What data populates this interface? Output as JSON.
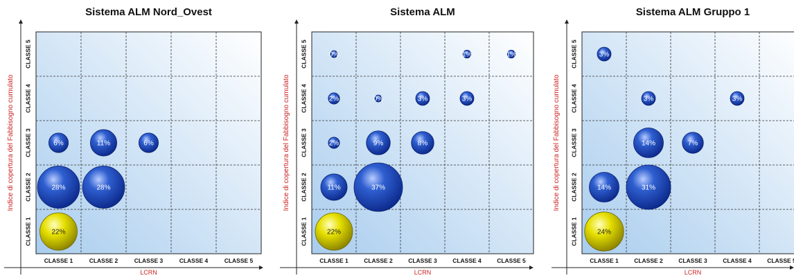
{
  "chart_data": [
    {
      "type": "bubble",
      "title": "Sistema ALM Nord_Ovest",
      "xlabel": "LCRN",
      "ylabel": "Indice di copertura del Fabbisogno cumulato",
      "x_categories": [
        "CLASSE 1",
        "CLASSE 2",
        "CLASSE 3",
        "CLASSE 4",
        "CLASSE 5"
      ],
      "y_categories": [
        "CLASSE 1",
        "CLASSE 2",
        "CLASSE 3",
        "CLASSE 4",
        "CLASSE 5"
      ],
      "grid": true,
      "points": [
        {
          "x": "CLASSE 1",
          "y": "CLASSE 1",
          "value": 22,
          "label": "22%",
          "color": "#e6e000"
        },
        {
          "x": "CLASSE 1",
          "y": "CLASSE 2",
          "value": 28,
          "label": "28%",
          "color": "#2f5fd0"
        },
        {
          "x": "CLASSE 2",
          "y": "CLASSE 2",
          "value": 28,
          "label": "28%",
          "color": "#2f5fd0"
        },
        {
          "x": "CLASSE 1",
          "y": "CLASSE 3",
          "value": 6,
          "label": "6%",
          "color": "#2f5fd0"
        },
        {
          "x": "CLASSE 2",
          "y": "CLASSE 3",
          "value": 11,
          "label": "11%",
          "color": "#2f5fd0"
        },
        {
          "x": "CLASSE 3",
          "y": "CLASSE 3",
          "value": 6,
          "label": "6%",
          "color": "#2f5fd0"
        }
      ]
    },
    {
      "type": "bubble",
      "title": "Sistema ALM",
      "xlabel": "LCRN",
      "ylabel": "Indice di copertura del Fabbisogno cumulato",
      "x_categories": [
        "CLASSE 1",
        "CLASSE 2",
        "CLASSE 3",
        "CLASSE 4",
        "CLASSE 5"
      ],
      "y_categories": [
        "CLASSE 1",
        "CLASSE 2",
        "CLASSE 3",
        "CLASSE 4",
        "CLASSE 5"
      ],
      "grid": true,
      "points": [
        {
          "x": "CLASSE 1",
          "y": "CLASSE 1",
          "value": 22,
          "label": "22%",
          "color": "#e6e000"
        },
        {
          "x": "CLASSE 1",
          "y": "CLASSE 2",
          "value": 11,
          "label": "11%",
          "color": "#2f5fd0"
        },
        {
          "x": "CLASSE 2",
          "y": "CLASSE 2",
          "value": 37,
          "label": "37%",
          "color": "#2f5fd0"
        },
        {
          "x": "CLASSE 1",
          "y": "CLASSE 3",
          "value": 2,
          "label": "2%",
          "color": "#2f5fd0"
        },
        {
          "x": "CLASSE 2",
          "y": "CLASSE 3",
          "value": 9,
          "label": "9%",
          "color": "#2f5fd0"
        },
        {
          "x": "CLASSE 3",
          "y": "CLASSE 3",
          "value": 8,
          "label": "8%",
          "color": "#2f5fd0"
        },
        {
          "x": "CLASSE 1",
          "y": "CLASSE 4",
          "value": 2,
          "label": "2%",
          "color": "#2f5fd0"
        },
        {
          "x": "CLASSE 2",
          "y": "CLASSE 4",
          "value": 0,
          "label": "0%",
          "color": "#2f5fd0"
        },
        {
          "x": "CLASSE 3",
          "y": "CLASSE 4",
          "value": 3,
          "label": "3%",
          "color": "#2f5fd0"
        },
        {
          "x": "CLASSE 4",
          "y": "CLASSE 4",
          "value": 3,
          "label": "3%",
          "color": "#2f5fd0"
        },
        {
          "x": "CLASSE 1",
          "y": "CLASSE 5",
          "value": 0,
          "label": "0%",
          "color": "#2f5fd0"
        },
        {
          "x": "CLASSE 4",
          "y": "CLASSE 5",
          "value": 1,
          "label": "1%",
          "color": "#2f5fd0"
        },
        {
          "x": "CLASSE 5",
          "y": "CLASSE 5",
          "value": 1,
          "label": "1%",
          "color": "#2f5fd0"
        }
      ]
    },
    {
      "type": "bubble",
      "title": "Sistema ALM Gruppo 1",
      "xlabel": "LCRN",
      "ylabel": "Indice di copertura del Fabbisogno cumulato",
      "x_categories": [
        "CLASSE 1",
        "CLASSE 2",
        "CLASSE 3",
        "CLASSE 4",
        "CLASSE 5"
      ],
      "y_categories": [
        "CLASSE 1",
        "CLASSE 2",
        "CLASSE 3",
        "CLASSE 4",
        "CLASSE 5"
      ],
      "grid": true,
      "points": [
        {
          "x": "CLASSE 1",
          "y": "CLASSE 1",
          "value": 24,
          "label": "24%",
          "color": "#e6e000"
        },
        {
          "x": "CLASSE 1",
          "y": "CLASSE 2",
          "value": 14,
          "label": "14%",
          "color": "#2f5fd0"
        },
        {
          "x": "CLASSE 2",
          "y": "CLASSE 2",
          "value": 31,
          "label": "31%",
          "color": "#2f5fd0"
        },
        {
          "x": "CLASSE 2",
          "y": "CLASSE 3",
          "value": 14,
          "label": "14%",
          "color": "#2f5fd0"
        },
        {
          "x": "CLASSE 3",
          "y": "CLASSE 3",
          "value": 7,
          "label": "7%",
          "color": "#2f5fd0"
        },
        {
          "x": "CLASSE 2",
          "y": "CLASSE 4",
          "value": 3,
          "label": "3%",
          "color": "#2f5fd0"
        },
        {
          "x": "CLASSE 4",
          "y": "CLASSE 4",
          "value": 3,
          "label": "3%",
          "color": "#2f5fd0"
        },
        {
          "x": "CLASSE 1",
          "y": "CLASSE 5",
          "value": 3,
          "label": "3%",
          "color": "#2f5fd0"
        }
      ]
    }
  ],
  "colors": {
    "bubble_blue": "#2f5fd0",
    "bubble_yellow": "#e6e000",
    "axis_label": "#cc2222",
    "plot_bg_light": "#ffffff",
    "plot_bg_dark": "#a9cdee"
  }
}
